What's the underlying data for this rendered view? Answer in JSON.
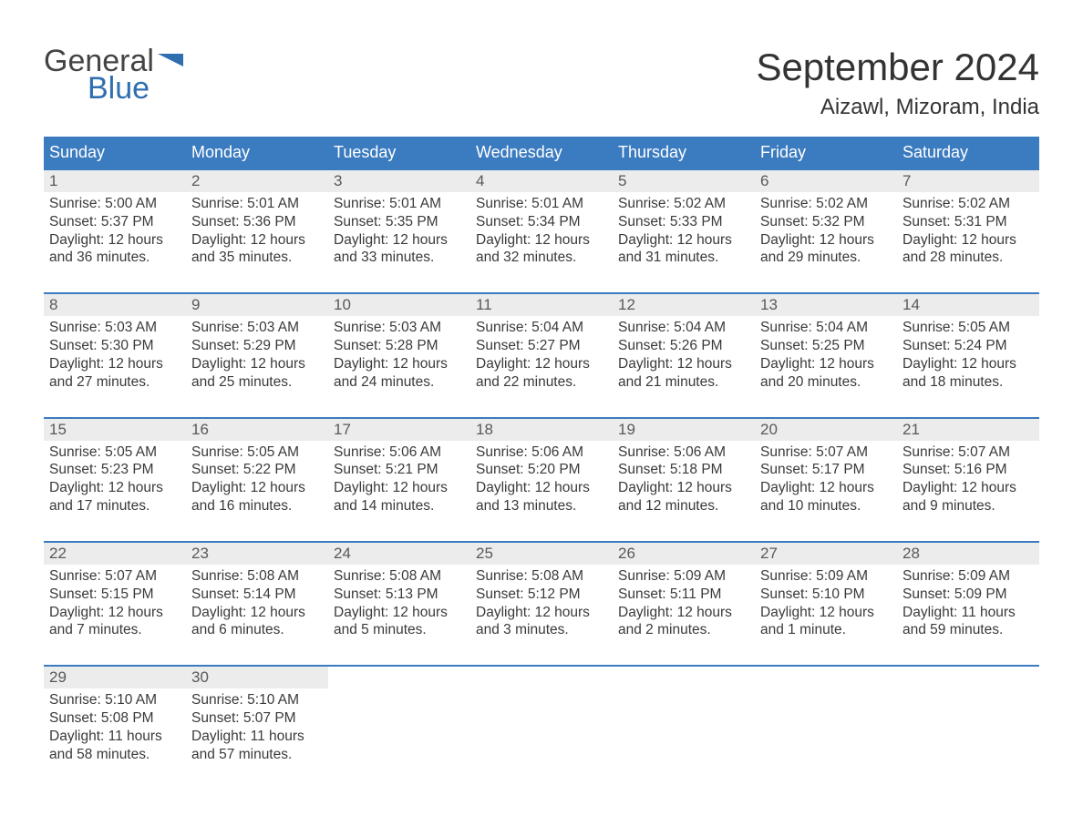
{
  "logo": {
    "line1": "General",
    "line2": "Blue",
    "text_color1": "#444444",
    "text_color2": "#2f6fb0",
    "flag_color": "#2f6fb0"
  },
  "header": {
    "title": "September 2024",
    "location": "Aizawl, Mizoram, India"
  },
  "colors": {
    "header_bg": "#3b7bbf",
    "header_text": "#ffffff",
    "week_border": "#3b7bbf",
    "daynum_bg": "#ececec",
    "daynum_text": "#595959",
    "detail_text": "#3a3a3a",
    "page_bg": "#ffffff"
  },
  "day_names": [
    "Sunday",
    "Monday",
    "Tuesday",
    "Wednesday",
    "Thursday",
    "Friday",
    "Saturday"
  ],
  "weeks": [
    [
      {
        "n": "1",
        "sr": "5:00 AM",
        "ss": "5:37 PM",
        "dl": "12 hours and 36 minutes."
      },
      {
        "n": "2",
        "sr": "5:01 AM",
        "ss": "5:36 PM",
        "dl": "12 hours and 35 minutes."
      },
      {
        "n": "3",
        "sr": "5:01 AM",
        "ss": "5:35 PM",
        "dl": "12 hours and 33 minutes."
      },
      {
        "n": "4",
        "sr": "5:01 AM",
        "ss": "5:34 PM",
        "dl": "12 hours and 32 minutes."
      },
      {
        "n": "5",
        "sr": "5:02 AM",
        "ss": "5:33 PM",
        "dl": "12 hours and 31 minutes."
      },
      {
        "n": "6",
        "sr": "5:02 AM",
        "ss": "5:32 PM",
        "dl": "12 hours and 29 minutes."
      },
      {
        "n": "7",
        "sr": "5:02 AM",
        "ss": "5:31 PM",
        "dl": "12 hours and 28 minutes."
      }
    ],
    [
      {
        "n": "8",
        "sr": "5:03 AM",
        "ss": "5:30 PM",
        "dl": "12 hours and 27 minutes."
      },
      {
        "n": "9",
        "sr": "5:03 AM",
        "ss": "5:29 PM",
        "dl": "12 hours and 25 minutes."
      },
      {
        "n": "10",
        "sr": "5:03 AM",
        "ss": "5:28 PM",
        "dl": "12 hours and 24 minutes."
      },
      {
        "n": "11",
        "sr": "5:04 AM",
        "ss": "5:27 PM",
        "dl": "12 hours and 22 minutes."
      },
      {
        "n": "12",
        "sr": "5:04 AM",
        "ss": "5:26 PM",
        "dl": "12 hours and 21 minutes."
      },
      {
        "n": "13",
        "sr": "5:04 AM",
        "ss": "5:25 PM",
        "dl": "12 hours and 20 minutes."
      },
      {
        "n": "14",
        "sr": "5:05 AM",
        "ss": "5:24 PM",
        "dl": "12 hours and 18 minutes."
      }
    ],
    [
      {
        "n": "15",
        "sr": "5:05 AM",
        "ss": "5:23 PM",
        "dl": "12 hours and 17 minutes."
      },
      {
        "n": "16",
        "sr": "5:05 AM",
        "ss": "5:22 PM",
        "dl": "12 hours and 16 minutes."
      },
      {
        "n": "17",
        "sr": "5:06 AM",
        "ss": "5:21 PM",
        "dl": "12 hours and 14 minutes."
      },
      {
        "n": "18",
        "sr": "5:06 AM",
        "ss": "5:20 PM",
        "dl": "12 hours and 13 minutes."
      },
      {
        "n": "19",
        "sr": "5:06 AM",
        "ss": "5:18 PM",
        "dl": "12 hours and 12 minutes."
      },
      {
        "n": "20",
        "sr": "5:07 AM",
        "ss": "5:17 PM",
        "dl": "12 hours and 10 minutes."
      },
      {
        "n": "21",
        "sr": "5:07 AM",
        "ss": "5:16 PM",
        "dl": "12 hours and 9 minutes."
      }
    ],
    [
      {
        "n": "22",
        "sr": "5:07 AM",
        "ss": "5:15 PM",
        "dl": "12 hours and 7 minutes."
      },
      {
        "n": "23",
        "sr": "5:08 AM",
        "ss": "5:14 PM",
        "dl": "12 hours and 6 minutes."
      },
      {
        "n": "24",
        "sr": "5:08 AM",
        "ss": "5:13 PM",
        "dl": "12 hours and 5 minutes."
      },
      {
        "n": "25",
        "sr": "5:08 AM",
        "ss": "5:12 PM",
        "dl": "12 hours and 3 minutes."
      },
      {
        "n": "26",
        "sr": "5:09 AM",
        "ss": "5:11 PM",
        "dl": "12 hours and 2 minutes."
      },
      {
        "n": "27",
        "sr": "5:09 AM",
        "ss": "5:10 PM",
        "dl": "12 hours and 1 minute."
      },
      {
        "n": "28",
        "sr": "5:09 AM",
        "ss": "5:09 PM",
        "dl": "11 hours and 59 minutes."
      }
    ],
    [
      {
        "n": "29",
        "sr": "5:10 AM",
        "ss": "5:08 PM",
        "dl": "11 hours and 58 minutes."
      },
      {
        "n": "30",
        "sr": "5:10 AM",
        "ss": "5:07 PM",
        "dl": "11 hours and 57 minutes."
      },
      null,
      null,
      null,
      null,
      null
    ]
  ],
  "labels": {
    "sunrise": "Sunrise:",
    "sunset": "Sunset:",
    "daylight": "Daylight:"
  }
}
